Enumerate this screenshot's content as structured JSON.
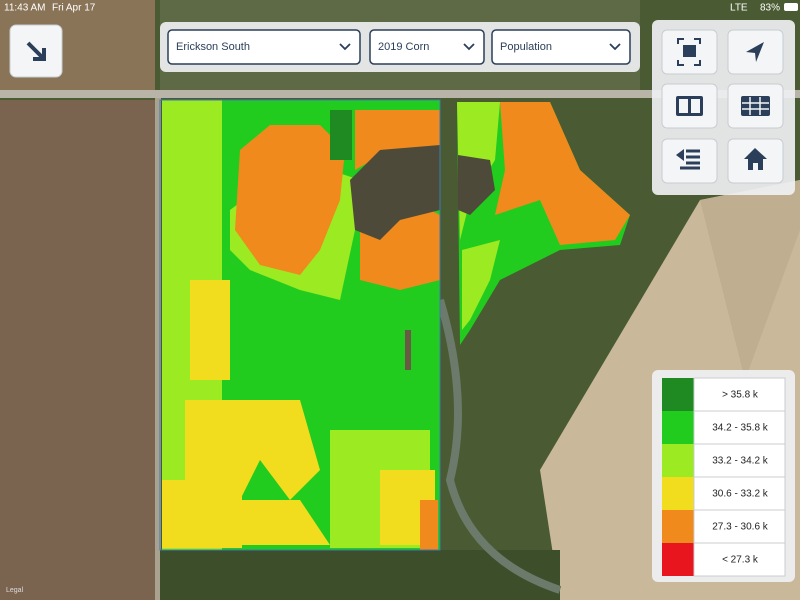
{
  "status_bar": {
    "time": "11:43 AM",
    "date": "Fri Apr 17",
    "network": "LTE",
    "battery": "83%"
  },
  "selectors": [
    {
      "label": "Erickson South"
    },
    {
      "label": "2019 Corn"
    },
    {
      "label": "Population"
    }
  ],
  "legend": {
    "items": [
      {
        "label": "> 35.8 k",
        "color": "#1f8a22"
      },
      {
        "label": "34.2 - 35.8 k",
        "color": "#22cc1e"
      },
      {
        "label": "33.2 - 34.2 k",
        "color": "#9bea22"
      },
      {
        "label": "30.6 - 33.2 k",
        "color": "#f2dc1e"
      },
      {
        "label": "27.3 - 30.6 k",
        "color": "#f08a1c"
      },
      {
        "label": "< 27.3 k",
        "color": "#e8141e"
      }
    ]
  },
  "map_credit": "Legal"
}
